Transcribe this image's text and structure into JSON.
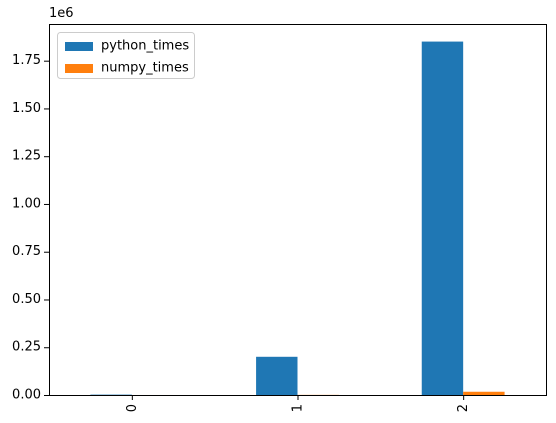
{
  "chart_data": {
    "type": "bar",
    "categories": [
      "0",
      "1",
      "2"
    ],
    "series": [
      {
        "name": "python_times",
        "values": [
          2000,
          200000,
          1850000
        ],
        "color": "#1f77b4"
      },
      {
        "name": "numpy_times",
        "values": [
          50,
          700,
          17000
        ],
        "color": "#ff7f0e"
      }
    ],
    "ylim": [
      0,
      1942000
    ],
    "yticks": [
      0,
      250000,
      500000,
      750000,
      1000000,
      1250000,
      1500000,
      1750000
    ],
    "ytick_labels": [
      "0.00",
      "0.25",
      "0.50",
      "0.75",
      "1.00",
      "1.25",
      "1.50",
      "1.75"
    ],
    "y_offset_label": "1e6",
    "title": "",
    "xlabel": "",
    "ylabel": "",
    "legend_position": "upper-left",
    "grid": false
  }
}
